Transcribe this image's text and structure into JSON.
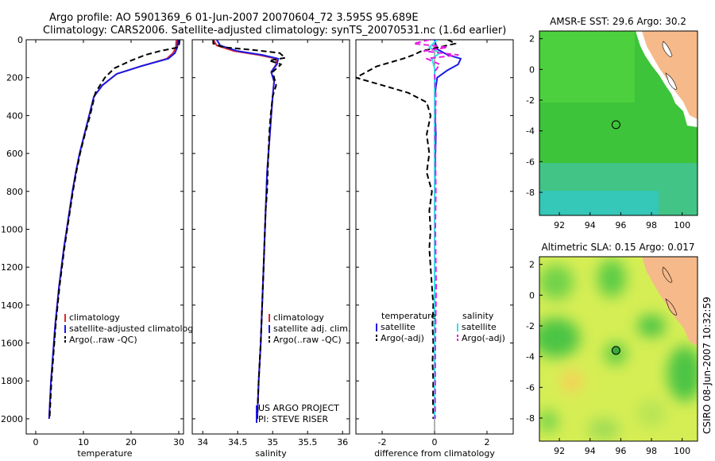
{
  "colors": {
    "climatology": "#e0262b",
    "satellite": "#1a1ae6",
    "argo": "#000000",
    "sal_sat": "#33e0e8",
    "sal_argo": "#e61fe6",
    "land": "#f6b98a",
    "ocean_sst": "#33cc33",
    "ocean_sla": "#ccee55"
  },
  "header": {
    "line1": "Argo profile: AO 5901369_6 01-Jun-2007 20070604_72 3.595S 95.689E",
    "line2": "Climatology: CARS2006. Satellite-adjusted climatology: synTS_20070531.nc (1.6d earlier)"
  },
  "credit": "CSIRO 08-Jun-2007 10:32:59",
  "chart_data": [
    {
      "type": "line",
      "name": "temperature",
      "xlabel": "temperature",
      "xlim": [
        -2,
        31
      ],
      "ylim": [
        0,
        2080
      ],
      "y_reversed": true,
      "xticks": [
        0,
        10,
        20,
        30
      ],
      "yticks": [
        0,
        200,
        400,
        600,
        800,
        1000,
        1200,
        1400,
        1600,
        1800,
        2000
      ],
      "legend": [
        "climatology",
        "satellite-adjusted climatology",
        "Argo(..raw -QC)"
      ],
      "series": [
        {
          "name": "climatology",
          "color_key": "climatology",
          "style": "solid",
          "points": [
            [
              29.5,
              0
            ],
            [
              29.4,
              40
            ],
            [
              28.8,
              70
            ],
            [
              27.5,
              100
            ],
            [
              22,
              140
            ],
            [
              17,
              180
            ],
            [
              14,
              240
            ],
            [
              12.2,
              300
            ],
            [
              11.2,
              400
            ],
            [
              10.2,
              500
            ],
            [
              9.2,
              600
            ],
            [
              8.4,
              700
            ],
            [
              7.7,
              800
            ],
            [
              7.1,
              900
            ],
            [
              6.5,
              1000
            ],
            [
              5.9,
              1100
            ],
            [
              5.4,
              1200
            ],
            [
              4.9,
              1300
            ],
            [
              4.5,
              1400
            ],
            [
              4.1,
              1500
            ],
            [
              3.8,
              1600
            ],
            [
              3.5,
              1700
            ],
            [
              3.2,
              1800
            ],
            [
              3.0,
              1900
            ],
            [
              2.8,
              2000
            ]
          ]
        },
        {
          "name": "satellite-adjusted climatology",
          "color_key": "satellite",
          "style": "solid",
          "points": [
            [
              29.8,
              0
            ],
            [
              29.7,
              40
            ],
            [
              29.2,
              70
            ],
            [
              27.8,
              100
            ],
            [
              22,
              140
            ],
            [
              17,
              180
            ],
            [
              14,
              240
            ],
            [
              12.2,
              300
            ],
            [
              11.2,
              400
            ],
            [
              10.2,
              500
            ],
            [
              9.2,
              600
            ],
            [
              8.4,
              700
            ],
            [
              7.7,
              800
            ],
            [
              7.1,
              900
            ],
            [
              6.5,
              1000
            ],
            [
              5.9,
              1100
            ],
            [
              5.4,
              1200
            ],
            [
              4.9,
              1300
            ],
            [
              4.5,
              1400
            ],
            [
              4.1,
              1500
            ],
            [
              3.8,
              1600
            ],
            [
              3.5,
              1700
            ],
            [
              3.2,
              1800
            ],
            [
              3.0,
              1900
            ],
            [
              2.8,
              2000
            ]
          ]
        },
        {
          "name": "Argo(..raw -QC)",
          "color_key": "argo",
          "style": "dash",
          "points": [
            [
              30.2,
              0
            ],
            [
              30.1,
              20
            ],
            [
              29.9,
              40
            ],
            [
              26,
              60
            ],
            [
              23,
              80
            ],
            [
              20,
              110
            ],
            [
              16.5,
              150
            ],
            [
              14.5,
              200
            ],
            [
              12.5,
              280
            ],
            [
              11.4,
              400
            ],
            [
              10.3,
              500
            ],
            [
              9.3,
              600
            ],
            [
              8.5,
              700
            ],
            [
              7.8,
              800
            ],
            [
              7.2,
              900
            ],
            [
              6.6,
              1000
            ],
            [
              6.0,
              1100
            ],
            [
              5.5,
              1200
            ],
            [
              5.0,
              1300
            ],
            [
              4.6,
              1400
            ],
            [
              4.2,
              1500
            ],
            [
              3.9,
              1600
            ],
            [
              3.6,
              1700
            ],
            [
              3.3,
              1800
            ],
            [
              3.1,
              1900
            ],
            [
              2.9,
              2000
            ]
          ]
        }
      ]
    },
    {
      "type": "line",
      "name": "salinity",
      "xlabel": "salinity",
      "xlim": [
        33.85,
        36.1
      ],
      "ylim": [
        0,
        2080
      ],
      "y_reversed": true,
      "xticks": [
        34,
        34.5,
        35,
        35.5,
        36
      ],
      "legend": [
        "climatology",
        "satellite adj. clim.",
        "Argo(..raw -QC)"
      ],
      "annotation": [
        "US ARGO PROJECT",
        "PI: STEVE RISER"
      ],
      "series": [
        {
          "name": "climatology",
          "color_key": "climatology",
          "style": "solid",
          "points": [
            [
              34.15,
              0
            ],
            [
              34.2,
              30
            ],
            [
              34.45,
              60
            ],
            [
              34.8,
              80
            ],
            [
              35.05,
              100
            ],
            [
              35.05,
              130
            ],
            [
              34.98,
              170
            ],
            [
              35.02,
              220
            ],
            [
              35.0,
              300
            ],
            [
              34.98,
              400
            ],
            [
              34.96,
              500
            ],
            [
              34.94,
              600
            ],
            [
              34.92,
              700
            ],
            [
              34.91,
              800
            ],
            [
              34.9,
              900
            ],
            [
              34.89,
              1000
            ],
            [
              34.87,
              1200
            ],
            [
              34.85,
              1400
            ],
            [
              34.83,
              1600
            ],
            [
              34.8,
              1800
            ],
            [
              34.78,
              2000
            ]
          ]
        },
        {
          "name": "satellite adj. clim.",
          "color_key": "satellite",
          "style": "solid",
          "points": [
            [
              34.2,
              0
            ],
            [
              34.25,
              30
            ],
            [
              34.5,
              60
            ],
            [
              34.85,
              80
            ],
            [
              35.08,
              100
            ],
            [
              35.06,
              130
            ],
            [
              34.98,
              170
            ],
            [
              35.02,
              220
            ],
            [
              35.0,
              300
            ],
            [
              34.98,
              400
            ],
            [
              34.96,
              500
            ],
            [
              34.94,
              600
            ],
            [
              34.92,
              700
            ],
            [
              34.91,
              800
            ],
            [
              34.9,
              900
            ],
            [
              34.89,
              1000
            ],
            [
              34.87,
              1200
            ],
            [
              34.85,
              1400
            ],
            [
              34.83,
              1600
            ],
            [
              34.8,
              1800
            ],
            [
              34.78,
              2000
            ]
          ]
        },
        {
          "name": "Argo(..raw -QC)",
          "color_key": "argo",
          "style": "dash",
          "points": [
            [
              34.15,
              0
            ],
            [
              34.15,
              20
            ],
            [
              34.3,
              40
            ],
            [
              34.75,
              55
            ],
            [
              35.1,
              70
            ],
            [
              35.18,
              95
            ],
            [
              34.95,
              110
            ],
            [
              35.12,
              130
            ],
            [
              35.0,
              170
            ],
            [
              35.05,
              240
            ],
            [
              35.0,
              300
            ],
            [
              34.97,
              400
            ],
            [
              34.95,
              500
            ],
            [
              34.94,
              600
            ],
            [
              34.93,
              700
            ],
            [
              34.92,
              800
            ],
            [
              34.9,
              900
            ],
            [
              34.89,
              1000
            ],
            [
              34.87,
              1200
            ],
            [
              34.85,
              1400
            ],
            [
              34.83,
              1600
            ],
            [
              34.8,
              1800
            ],
            [
              34.78,
              2000
            ]
          ]
        }
      ]
    },
    {
      "type": "line",
      "name": "difference",
      "xlabel": "difference from climatology",
      "xlim": [
        -3,
        3
      ],
      "ylim": [
        0,
        2080
      ],
      "y_reversed": true,
      "xticks": [
        -2,
        0,
        2
      ],
      "legend_headers": [
        "temperature",
        "salinity"
      ],
      "legend": [
        "satellite",
        "Argo(-adj)",
        "satellite",
        "Argo(-adj)"
      ],
      "series": [
        {
          "name": "temperature satellite",
          "color_key": "satellite",
          "style": "solid",
          "points": [
            [
              0,
              0
            ],
            [
              0.1,
              50
            ],
            [
              0.5,
              80
            ],
            [
              1.0,
              100
            ],
            [
              0.9,
              130
            ],
            [
              0.5,
              160
            ],
            [
              0.1,
              200
            ],
            [
              0,
              300
            ],
            [
              0.05,
              500
            ],
            [
              0,
              800
            ],
            [
              0,
              1200
            ],
            [
              0,
              1600
            ],
            [
              0,
              2000
            ]
          ]
        },
        {
          "name": "temperature Argo(-adj)",
          "color_key": "argo",
          "style": "dash",
          "points": [
            [
              0.5,
              0
            ],
            [
              0.8,
              20
            ],
            [
              -0.5,
              60
            ],
            [
              -0.8,
              80
            ],
            [
              -1.2,
              100
            ],
            [
              -2.2,
              140
            ],
            [
              -3.0,
              200
            ],
            [
              -2.0,
              240
            ],
            [
              -1.0,
              280
            ],
            [
              -0.3,
              330
            ],
            [
              -0.15,
              400
            ],
            [
              -0.3,
              500
            ],
            [
              -0.2,
              600
            ],
            [
              -0.3,
              700
            ],
            [
              -0.1,
              800
            ],
            [
              -0.2,
              900
            ],
            [
              -0.15,
              1000
            ],
            [
              -0.2,
              1100
            ],
            [
              -0.15,
              1200
            ],
            [
              -0.1,
              1300
            ],
            [
              -0.05,
              1400
            ],
            [
              -0.08,
              1500
            ],
            [
              -0.05,
              1600
            ],
            [
              -0.08,
              1700
            ],
            [
              -0.05,
              1800
            ],
            [
              -0.06,
              1900
            ],
            [
              -0.05,
              2000
            ]
          ]
        },
        {
          "name": "salinity satellite",
          "color_key": "sal_sat",
          "style": "solid",
          "points": [
            [
              0.1,
              0
            ],
            [
              -0.2,
              40
            ],
            [
              0.2,
              70
            ],
            [
              -0.1,
              100
            ],
            [
              0,
              150
            ],
            [
              0,
              300
            ],
            [
              0,
              600
            ],
            [
              0,
              1000
            ],
            [
              0,
              1400
            ],
            [
              0,
              1800
            ],
            [
              0,
              2000
            ]
          ]
        },
        {
          "name": "salinity Argo(-adj)",
          "color_key": "sal_argo",
          "style": "dash",
          "points": [
            [
              -0.2,
              0
            ],
            [
              -0.8,
              20
            ],
            [
              0.5,
              40
            ],
            [
              -0.4,
              60
            ],
            [
              0.9,
              80
            ],
            [
              -0.3,
              100
            ],
            [
              0.2,
              130
            ],
            [
              0,
              170
            ],
            [
              0.05,
              300
            ],
            [
              0.02,
              500
            ],
            [
              0.05,
              800
            ],
            [
              0.03,
              1000
            ],
            [
              0.06,
              1300
            ],
            [
              0.03,
              1600
            ],
            [
              0.02,
              2000
            ]
          ]
        }
      ]
    },
    {
      "type": "heatmap",
      "name": "amsre_sst",
      "title": "AMSR-E SST: 29.6  Argo: 30.2",
      "xlim": [
        90.7,
        101
      ],
      "ylim": [
        -9.5,
        2.5
      ],
      "xticks": [
        92,
        94,
        96,
        98,
        100
      ],
      "yticks": [
        2,
        0,
        -2,
        -4,
        -6,
        -8
      ],
      "marker": {
        "lon": 95.689,
        "lat": -3.595,
        "filled": false
      }
    },
    {
      "type": "heatmap",
      "name": "altimetric_sla",
      "title": "Altimetric SLA: 0.15  Argo: 0.017",
      "xlim": [
        90.7,
        101
      ],
      "ylim": [
        -9.5,
        2.5
      ],
      "xticks": [
        92,
        94,
        96,
        98,
        100
      ],
      "yticks": [
        2,
        0,
        -2,
        -4,
        -6,
        -8
      ],
      "marker": {
        "lon": 95.689,
        "lat": -3.595,
        "filled": true
      }
    }
  ]
}
